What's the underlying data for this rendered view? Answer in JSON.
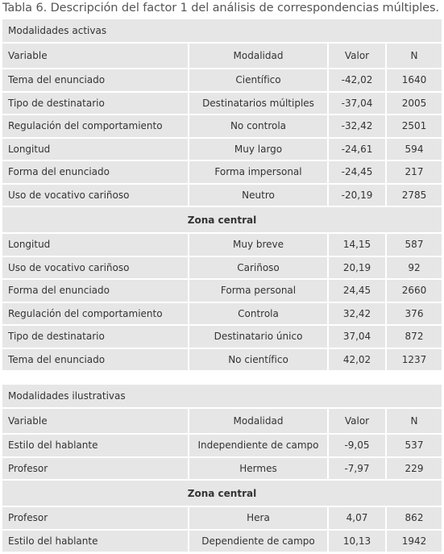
{
  "title": "Tabla 6. Descripción del factor 1 del análisis de correspondencias múltiples.",
  "tables": [
    {
      "heading": "Modalidades activas",
      "columns": [
        "Variable",
        "Modalidad",
        "Valor",
        "N"
      ],
      "rows_before": [
        [
          "Tema del enunciado",
          "Científico",
          "-42,02",
          "1640"
        ],
        [
          "Tipo de destinatario",
          "Destinatarios múltiples",
          "-37,04",
          "2005"
        ],
        [
          "Regulación del comportamiento",
          "No controla",
          "-32,42",
          "2501"
        ],
        [
          "Longitud",
          "Muy largo",
          "-24,61",
          "594"
        ],
        [
          "Forma del enunciado",
          "Forma  impersonal",
          "-24,45",
          "217"
        ],
        [
          "Uso de vocativo cariñoso",
          "Neutro",
          "-20,19",
          "2785"
        ]
      ],
      "central": "Zona central",
      "rows_after": [
        [
          "Longitud",
          "Muy breve",
          "14,15",
          "587"
        ],
        [
          "Uso de vocativo cariñoso",
          "Cariñoso",
          "20,19",
          "92"
        ],
        [
          "Forma del enunciado",
          "Forma personal",
          "24,45",
          "2660"
        ],
        [
          "Regulación del comportamiento",
          "Controla",
          "32,42",
          "376"
        ],
        [
          "Tipo de destinatario",
          "Destinatario único",
          "37,04",
          "872"
        ],
        [
          "Tema del enunciado",
          "No científico",
          "42,02",
          "1237"
        ]
      ]
    },
    {
      "heading": "Modalidades ilustrativas",
      "columns": [
        "Variable",
        "Modalidad",
        "Valor",
        "N"
      ],
      "rows_before": [
        [
          "Estilo del hablante",
          "Independiente de campo",
          "-9,05",
          "537"
        ],
        [
          "Profesor",
          "Hermes",
          "-7,97",
          "229"
        ]
      ],
      "central": "Zona central",
      "rows_after": [
        [
          "Profesor",
          "Hera",
          "4,07",
          "862"
        ],
        [
          "Estilo del hablante",
          "Dependiente de campo",
          "10,13",
          "1942"
        ]
      ]
    }
  ]
}
